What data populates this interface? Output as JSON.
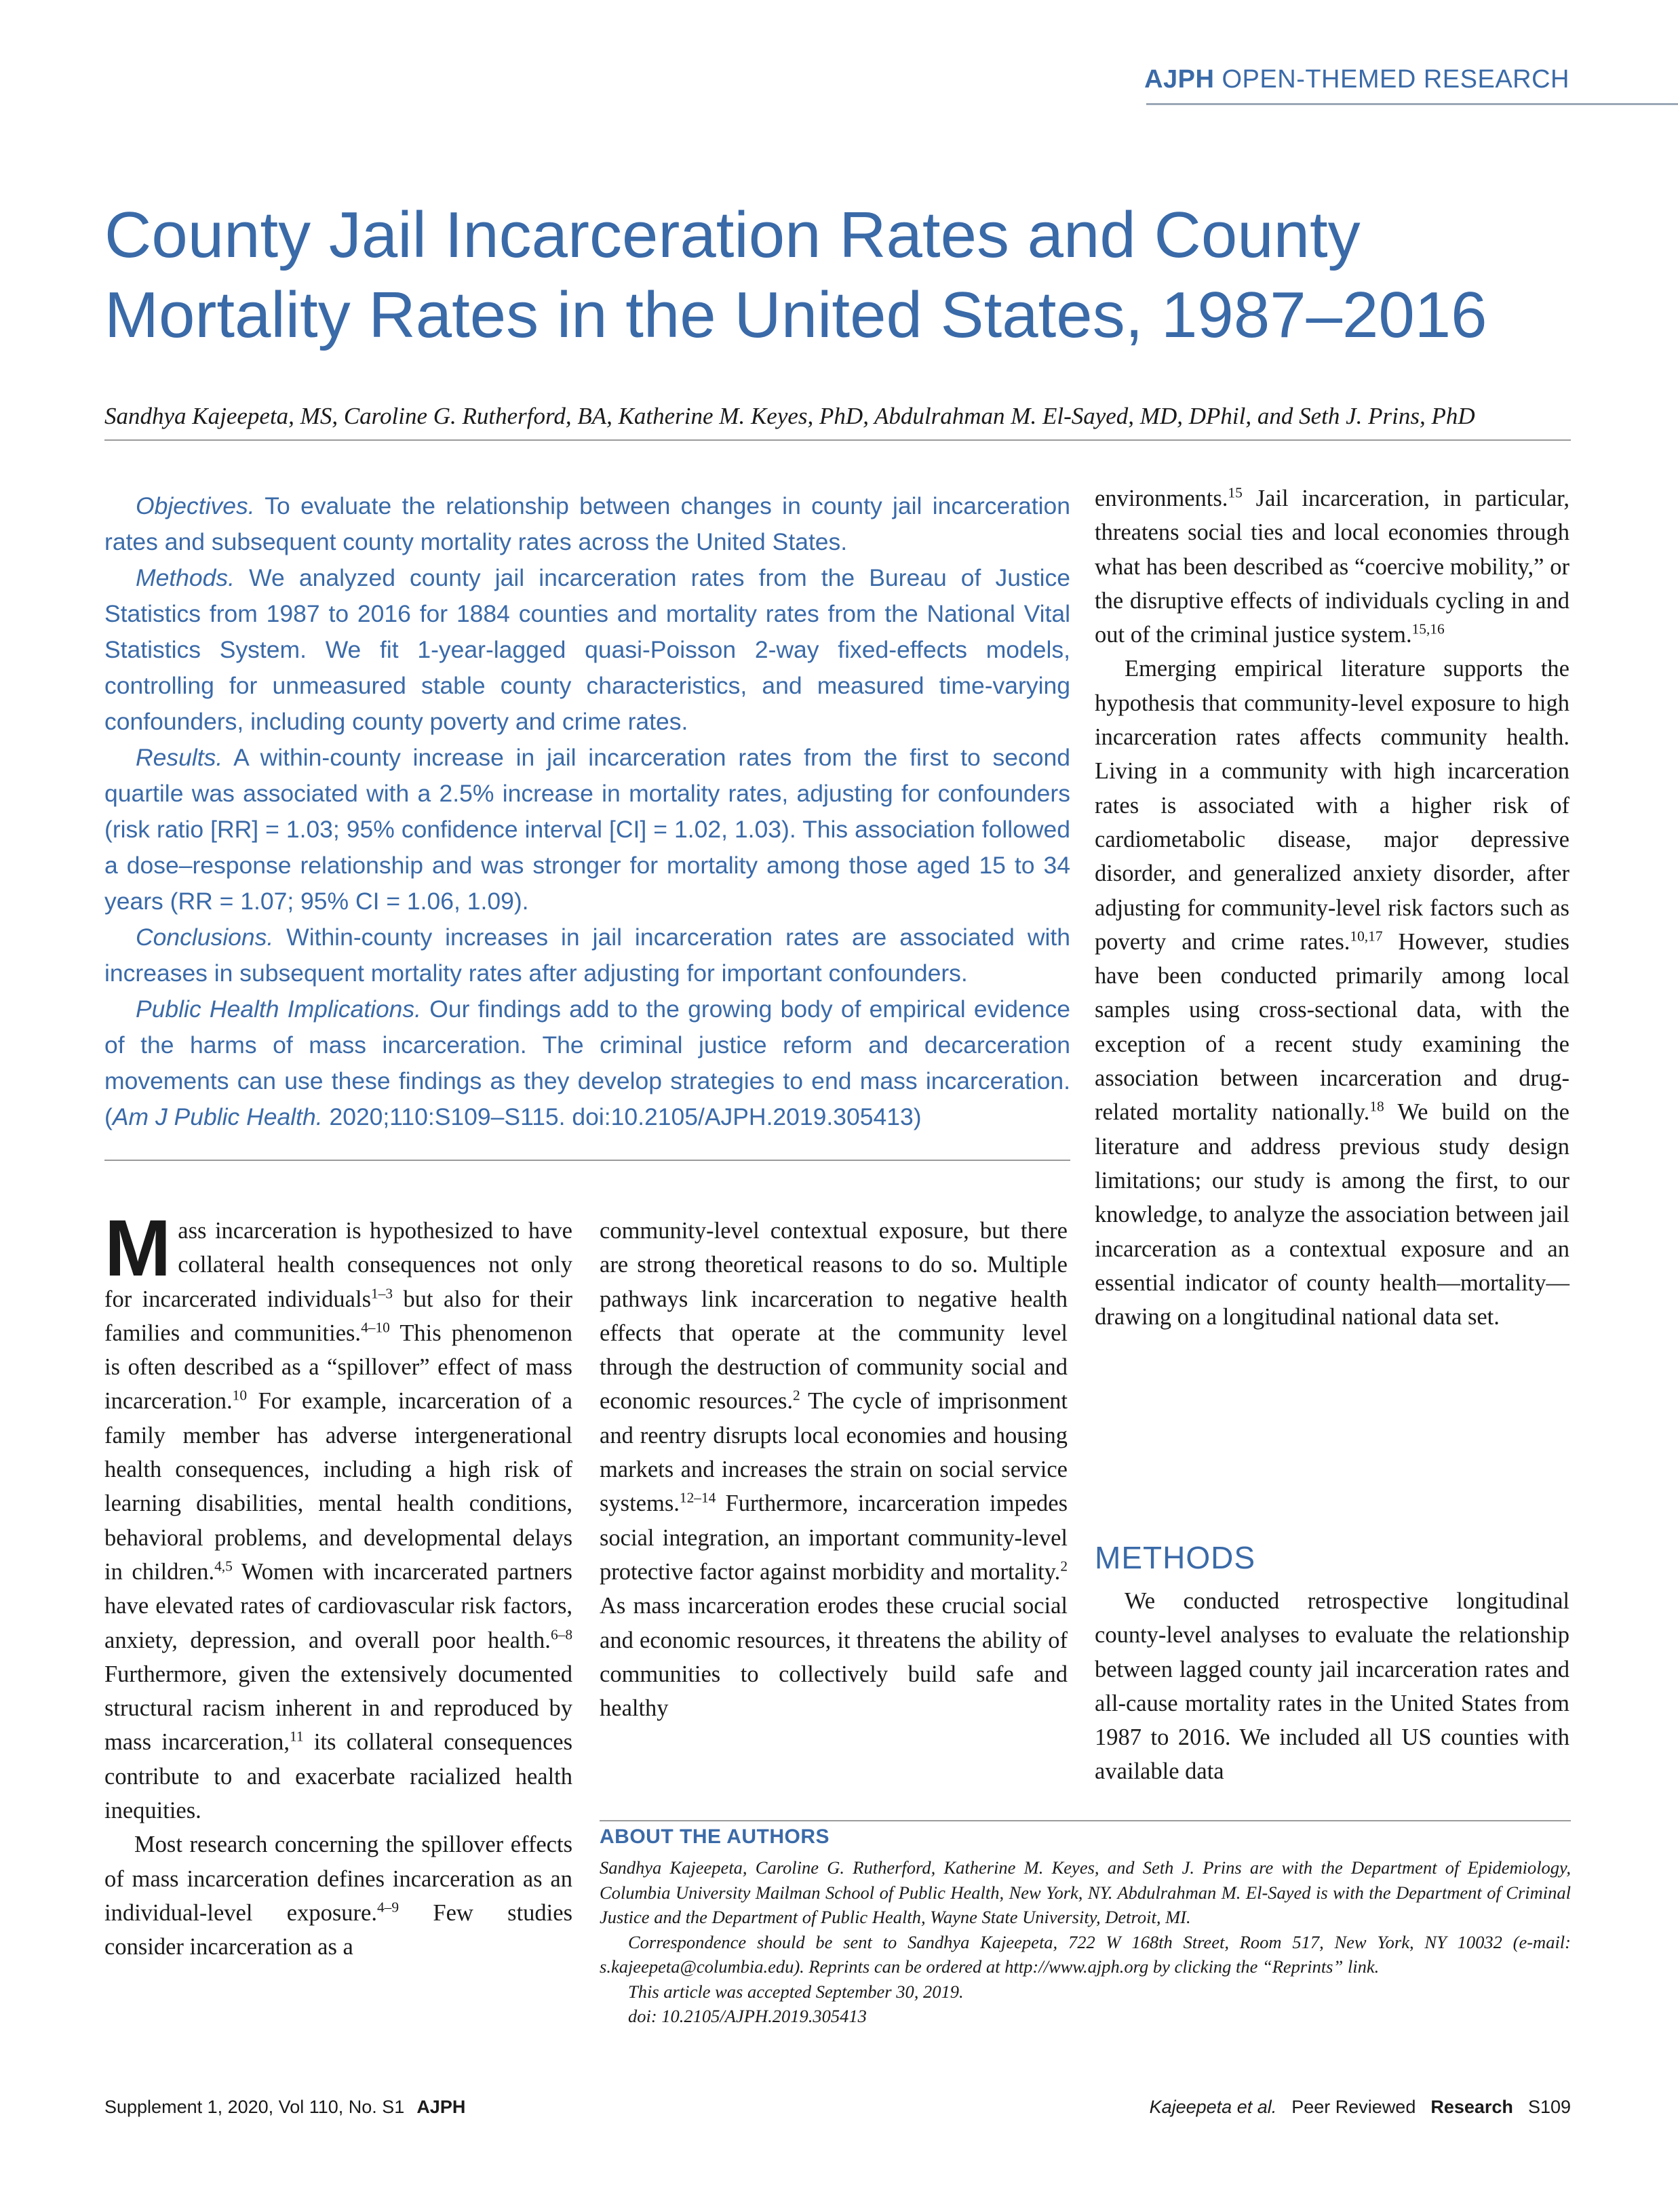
{
  "header": {
    "brand": "AJPH",
    "section": "OPEN-THEMED RESEARCH"
  },
  "title": {
    "line1": "County Jail Incarceration Rates and County",
    "line2": "Mortality Rates in the United States, 1987–2016"
  },
  "authors": "Sandhya Kajeepeta, MS, Caroline G. Rutherford, BA, Katherine M. Keyes, PhD, Abdulrahman M. El-Sayed, MD, DPhil, and Seth J. Prins, PhD",
  "abstract": {
    "objectives_label": "Objectives.",
    "objectives_text": " To evaluate the relationship between changes in county jail incarceration rates and subsequent county mortality rates across the United States.",
    "methods_label": "Methods.",
    "methods_text": " We analyzed county jail incarceration rates from the Bureau of Justice Statistics from 1987 to 2016 for 1884 counties and mortality rates from the National Vital Statistics System. We fit 1-year-lagged quasi-Poisson 2-way fixed-effects models, controlling for unmeasured stable county characteristics, and measured time-varying confounders, including county poverty and crime rates.",
    "results_label": "Results.",
    "results_text": " A within-county increase in jail incarceration rates from the first to second quartile was associated with a 2.5% increase in mortality rates, adjusting for confounders (risk ratio [RR] = 1.03; 95% confidence interval [CI] = 1.02, 1.03). This association followed a dose–response relationship and was stronger for mortality among those aged 15 to 34 years (RR = 1.07; 95% CI = 1.06, 1.09).",
    "conclusions_label": "Conclusions.",
    "conclusions_text": " Within-county increases in jail incarceration rates are associated with increases in subsequent mortality rates after adjusting for important confounders.",
    "implications_label": "Public Health Implications.",
    "implications_text": " Our findings add to the growing body of empirical evidence of the harms of mass incarceration. The criminal justice reform and decarceration movements can use these findings as they develop strategies to end mass incarceration.",
    "citation_open": " (",
    "citation_journal": "Am J Public Health.",
    "citation_rest": " 2020;110:S109–S115. doi:10.2105/AJPH.2019.305413)"
  },
  "body": {
    "col1": {
      "dropcap": "M",
      "p1_a": "ass incarceration is hypothesized to have collateral health consequences not only for incarcerated individuals",
      "p1_ref1": "1–3",
      "p1_b": " but also for their families and communities.",
      "p1_ref2": "4–10",
      "p1_c": " This phenomenon is often described as a “spillover” effect of mass incarceration.",
      "p1_ref3": "10",
      "p1_d": " For example, incarceration of a family member has adverse intergenerational health consequences, including a high risk of learning disabilities, mental health conditions, behavioral problems, and developmental delays in children.",
      "p1_ref4": "4,5",
      "p1_e": " Women with incarcerated partners have elevated rates of cardiovascular risk factors, anxiety, depression, and overall poor health.",
      "p1_ref5": "6–8",
      "p1_f": " Furthermore, given the extensively documented structural racism inherent in and reproduced by mass incarceration,",
      "p1_ref6": "11",
      "p1_g": " its collateral consequences contribute to and exacerbate racialized health inequities.",
      "p2_a": "Most research concerning the spillover effects of mass incarceration defines incarceration as an individual-level exposure.",
      "p2_ref1": "4–9",
      "p2_b": " Few studies consider incarceration as a"
    },
    "col2": {
      "p1_a": "community-level contextual exposure, but there are strong theoretical reasons to do so. Multiple pathways link incarceration to negative health effects that operate at the community level through the destruction of community social and economic resources.",
      "p1_ref1": "2",
      "p1_b": " The cycle of imprisonment and reentry disrupts local economies and housing markets and increases the strain on social service systems.",
      "p1_ref2": "12–14",
      "p1_c": " Furthermore, incarceration impedes social integration, an important community-level protective factor against morbidity and mortality.",
      "p1_ref3": "2",
      "p1_d": " As mass incarceration erodes these crucial social and economic resources, it threatens the ability of communities to collectively build safe and healthy"
    },
    "col3": {
      "p1_a": "environments.",
      "p1_ref1": "15",
      "p1_b": " Jail incarceration, in particular, threatens social ties and local economies through what has been described as “coercive mobility,” or the disruptive effects of individuals cycling in and out of the criminal justice system.",
      "p1_ref2": "15,16",
      "p2_a": "Emerging empirical literature supports the hypothesis that community-level exposure to high incarceration rates affects community health. Living in a community with high incarceration rates is associated with a higher risk of cardiometabolic disease, major depressive disorder, and generalized anxiety disorder, after adjusting for community-level risk factors such as poverty and crime rates.",
      "p2_ref1": "10,17",
      "p2_b": " However, studies have been conducted primarily among local samples using cross-sectional data, with the exception of a recent study examining the association between incarceration and drug-related mortality nationally.",
      "p2_ref2": "18",
      "p2_c": " We build on the literature and address previous study design limitations; our study is among the first, to our knowledge, to analyze the association between jail incarceration as a contextual exposure and an essential indicator of county health—mortality—drawing on a longitudinal national data set.",
      "methods_heading": "METHODS",
      "p3": "We conducted retrospective longitudinal county-level analyses to evaluate the relationship between lagged county jail incarceration rates and all-cause mortality rates in the United States from 1987 to 2016. We included all US counties with available data"
    }
  },
  "about": {
    "heading": "ABOUT THE AUTHORS",
    "p1": "Sandhya Kajeepeta, Caroline G. Rutherford, Katherine M. Keyes, and Seth J. Prins are with the Department of Epidemiology, Columbia University Mailman School of Public Health, New York, NY. Abdulrahman M. El-Sayed is with the Department of Criminal Justice and the Department of Public Health, Wayne State University, Detroit, MI.",
    "p2": "Correspondence should be sent to Sandhya Kajeepeta, 722 W 168th Street, Room 517, New York, NY 10032 (e-mail: s.kajeepeta@columbia.edu). Reprints can be ordered at http://www.ajph.org by clicking the “Reprints” link.",
    "p3": "This article was accepted September 30, 2019.",
    "p4": "doi: 10.2105/AJPH.2019.305413"
  },
  "footer": {
    "issue": "Supplement 1, 2020, Vol 110, No. S1",
    "journal": "AJPH",
    "authors": "Kajeepeta et al.",
    "review": "Peer Reviewed",
    "section": "Research",
    "page": "S109"
  }
}
